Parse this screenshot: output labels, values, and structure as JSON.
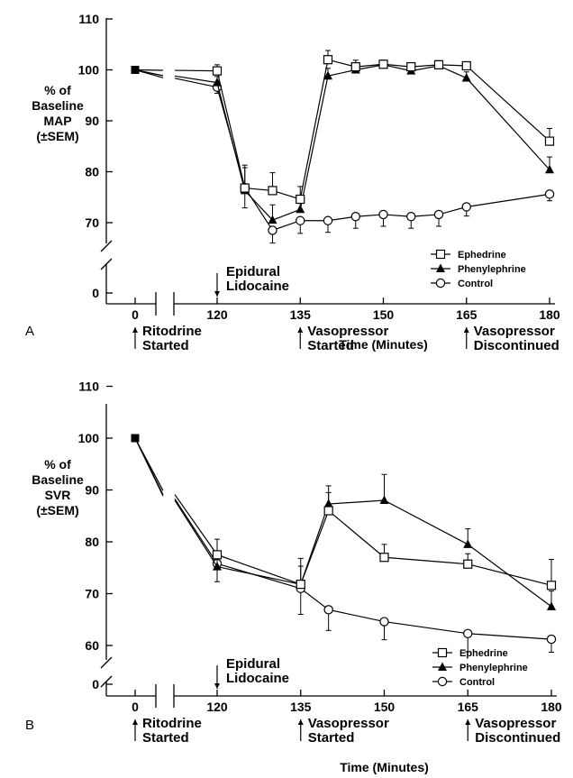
{
  "chart_data": [
    {
      "type": "line",
      "panel": "A",
      "title": "",
      "ylabel_lines": [
        "% of",
        "Baseline",
        "MAP",
        "(±SEM)"
      ],
      "xlabel": "Time (Minutes)",
      "y_ticks": [
        0,
        70,
        80,
        90,
        100,
        110
      ],
      "x_ticks": [
        0,
        120,
        135,
        150,
        165,
        180
      ],
      "ylim": [
        60,
        110
      ],
      "axis_breaks": {
        "x": true,
        "y": true
      },
      "legend": {
        "position": "right",
        "entries": [
          "Ephedrine",
          "Phenylephrine",
          "Control"
        ]
      },
      "annotations": {
        "top": [
          "Epidural",
          "Lidocaine"
        ],
        "bottom_0": [
          "Ritodrine",
          "Started"
        ],
        "bottom_135": [
          "Vasopressor",
          "Started"
        ],
        "bottom_165": [
          "Vasopressor",
          "Discontinued"
        ]
      },
      "baseline": {
        "x": 0,
        "y": 100
      },
      "series": [
        {
          "name": "Ephedrine",
          "marker": "square",
          "x": [
            120,
            125,
            130,
            135,
            140,
            145,
            150,
            155,
            160,
            165,
            180
          ],
          "y": [
            99.8,
            76.8,
            76.3,
            74.6,
            102,
            100.6,
            101.1,
            100.6,
            101,
            100.8,
            86
          ],
          "err": [
            1.2,
            4.5,
            3.5,
            2.5,
            1.8,
            1.3,
            0.8,
            0.8,
            0.8,
            0.8,
            2.5
          ]
        },
        {
          "name": "Phenylephrine",
          "marker": "triangle",
          "x": [
            120,
            125,
            130,
            135,
            140,
            145,
            150,
            155,
            160,
            165,
            180
          ],
          "y": [
            97.5,
            76.3,
            70.5,
            72.6,
            98.8,
            100,
            101,
            99.8,
            100.8,
            98.4,
            80.4
          ],
          "err": [
            1.2,
            4.5,
            3,
            2.5,
            1.5,
            1,
            0.8,
            0.8,
            0.8,
            1.2,
            2.5
          ]
        },
        {
          "name": "Control",
          "marker": "circle",
          "x": [
            120,
            125,
            130,
            135,
            140,
            145,
            150,
            155,
            160,
            165,
            180
          ],
          "y": [
            96.6,
            76.9,
            68.5,
            70.4,
            70.4,
            71.2,
            71.6,
            71.2,
            71.6,
            73.1,
            75.6
          ],
          "err": [
            1.2,
            4,
            2.5,
            2.5,
            2.3,
            2.3,
            2.3,
            2.3,
            2.3,
            1.8,
            1.3
          ]
        }
      ]
    },
    {
      "type": "line",
      "panel": "B",
      "title": "",
      "ylabel_lines": [
        "% of",
        "Baseline",
        "SVR",
        "(±SEM)"
      ],
      "xlabel": "Time (Minutes)",
      "y_ticks": [
        0,
        60,
        70,
        80,
        90,
        100,
        110
      ],
      "x_ticks": [
        0,
        120,
        135,
        150,
        165,
        180
      ],
      "ylim": [
        50,
        110
      ],
      "axis_breaks": {
        "x": true,
        "y": true
      },
      "legend": {
        "position": "right",
        "entries": [
          "Ephedrine",
          "Phenylephrine",
          "Control"
        ]
      },
      "annotations": {
        "top": [
          "Epidural",
          "Lidocaine"
        ],
        "bottom_0": [
          "Ritodrine",
          "Started"
        ],
        "bottom_135": [
          "Vasopressor",
          "Started"
        ],
        "bottom_165": [
          "Vasopressor",
          "Discontinued"
        ]
      },
      "baseline": {
        "x": 0,
        "y": 100
      },
      "series": [
        {
          "name": "Ephedrine",
          "marker": "square",
          "x": [
            120,
            135,
            140,
            150,
            165,
            180
          ],
          "y": [
            77.5,
            71.8,
            86,
            77,
            75.7,
            71.6
          ],
          "err": [
            3,
            5,
            3.5,
            2.5,
            2,
            5
          ]
        },
        {
          "name": "Phenylephrine",
          "marker": "triangle",
          "x": [
            120,
            135,
            140,
            150,
            165,
            180
          ],
          "y": [
            75.2,
            71.8,
            87.3,
            88,
            79.5,
            67.5
          ],
          "err": [
            3,
            3.5,
            3.5,
            5,
            3,
            3
          ]
        },
        {
          "name": "Control",
          "marker": "circle",
          "x": [
            120,
            135,
            140,
            150,
            165,
            180
          ],
          "y": [
            75.8,
            71,
            66.9,
            64.6,
            62.3,
            61.2
          ],
          "err": [
            3.5,
            5,
            4,
            3.5,
            3.5,
            2.5
          ]
        }
      ]
    }
  ]
}
